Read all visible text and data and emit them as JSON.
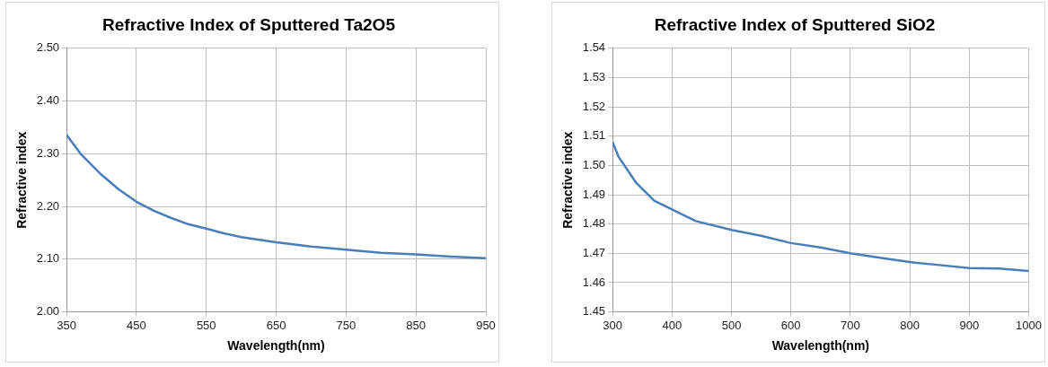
{
  "chart_data": [
    {
      "type": "line",
      "title": "Refractive Index of Sputtered Ta2O5",
      "xlabel": "Wavelength(nm)",
      "ylabel": "Refractive index",
      "x": [
        350,
        370,
        400,
        425,
        450,
        475,
        500,
        525,
        550,
        575,
        600,
        650,
        700,
        750,
        800,
        850,
        900,
        950
      ],
      "series": [
        {
          "color": "#4a7ebb",
          "values": [
            2.336,
            2.3,
            2.26,
            2.232,
            2.209,
            2.192,
            2.178,
            2.166,
            2.158,
            2.149,
            2.142,
            2.132,
            2.124,
            2.118,
            2.112,
            2.109,
            2.105,
            2.102
          ]
        }
      ],
      "xlim": [
        350,
        950
      ],
      "xticks": [
        350,
        450,
        550,
        650,
        750,
        850,
        950
      ],
      "ylim": [
        2.0,
        2.5
      ],
      "yticks": [
        {
          "value": 2.0,
          "label": "2.00"
        },
        {
          "value": 2.1,
          "label": "2.10"
        },
        {
          "value": 2.2,
          "label": "2.20"
        },
        {
          "value": 2.3,
          "label": "2.30"
        },
        {
          "value": 2.4,
          "label": "2.40"
        },
        {
          "value": 2.5,
          "label": "2.50"
        }
      ],
      "grid": true,
      "legend": false
    },
    {
      "type": "line",
      "title": "Refractive Index of Sputtered SiO2",
      "xlabel": "Wavelength(nm)",
      "ylabel": "Refractive index",
      "x": [
        300,
        310,
        340,
        370,
        400,
        440,
        500,
        550,
        600,
        650,
        700,
        750,
        800,
        850,
        900,
        950,
        1000
      ],
      "series": [
        {
          "color": "#4a7ebb",
          "values": [
            1.508,
            1.503,
            1.494,
            1.488,
            1.485,
            1.481,
            1.478,
            1.476,
            1.4735,
            1.472,
            1.47,
            1.4685,
            1.467,
            1.466,
            1.465,
            1.4648,
            1.464
          ]
        }
      ],
      "xlim": [
        300,
        1000
      ],
      "xticks": [
        300,
        400,
        500,
        600,
        700,
        800,
        900,
        1000
      ],
      "ylim": [
        1.45,
        1.54
      ],
      "yticks": [
        {
          "value": 1.45,
          "label": "1.45"
        },
        {
          "value": 1.46,
          "label": "1.46"
        },
        {
          "value": 1.47,
          "label": "1.47"
        },
        {
          "value": 1.48,
          "label": "1.48"
        },
        {
          "value": 1.49,
          "label": "1.49"
        },
        {
          "value": 1.5,
          "label": "1.50"
        },
        {
          "value": 1.51,
          "label": "1.51"
        },
        {
          "value": 1.52,
          "label": "1.52"
        },
        {
          "value": 1.53,
          "label": "1.53"
        },
        {
          "value": 1.54,
          "label": "1.54"
        }
      ],
      "grid": true,
      "legend": false
    }
  ]
}
